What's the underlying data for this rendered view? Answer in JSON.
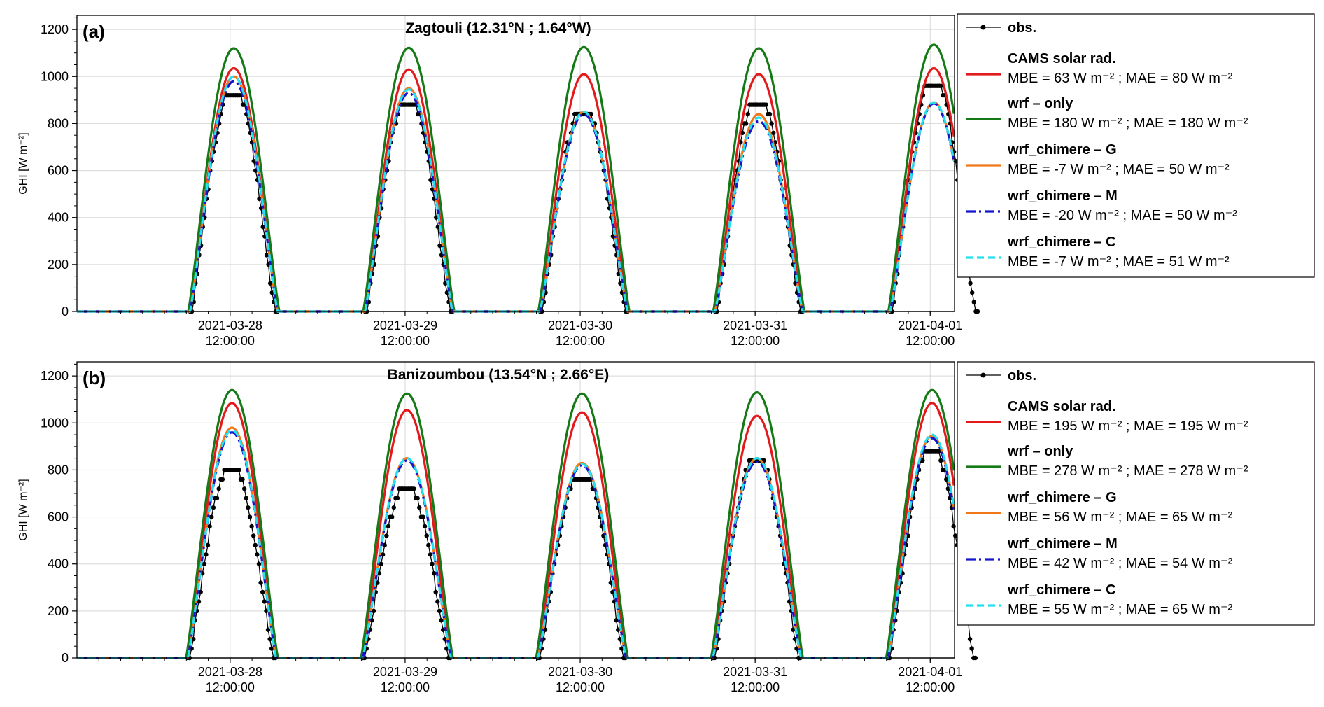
{
  "colors": {
    "obs": "#000000",
    "cams": "#e31a1c",
    "wrf_only": "#157a15",
    "wrf_chimere_G": "#f07818",
    "wrf_chimere_M": "#1515d0",
    "wrf_chimere_C": "#22e0f0"
  },
  "chart_data": [
    {
      "type": "line",
      "panel_label": "(a)",
      "title": "Zagtouli (12.31°N ; 1.64°W)",
      "ylabel": "GHI [W m⁻²]",
      "xlabel": "",
      "ylim": [
        0,
        1260
      ],
      "yticks": [
        0,
        200,
        400,
        600,
        800,
        1000,
        1200
      ],
      "xticks": [
        {
          "date": "2021-03-28",
          "time": "12:00:00"
        },
        {
          "date": "2021-03-29",
          "time": "12:00:00"
        },
        {
          "date": "2021-03-30",
          "time": "12:00:00"
        },
        {
          "date": "2021-03-31",
          "time": "12:00:00"
        },
        {
          "date": "2021-04-01",
          "time": "12:00:00"
        }
      ],
      "x_range_days": [
        "2021-03-27 15:00",
        "2021-04-01 15:20"
      ],
      "grid": true,
      "legend_position": "outside-right",
      "daylight_hours": [
        6.5,
        18.5
      ],
      "series": [
        {
          "key": "obs",
          "name": "obs.",
          "style": "line-dots",
          "daily_peak": [
            920,
            880,
            830,
            880,
            960
          ],
          "metrics": ""
        },
        {
          "key": "cams",
          "name": "CAMS solar rad.",
          "style": "solid",
          "daily_peak": [
            1035,
            1030,
            1010,
            1010,
            1035
          ],
          "metrics": "MBE = 63 W m⁻² ; MAE = 80 W m⁻²"
        },
        {
          "key": "wrf_only",
          "name": "wrf – only",
          "style": "solid",
          "daily_peak": [
            1120,
            1122,
            1125,
            1120,
            1135
          ],
          "metrics": "MBE = 180 W m⁻² ; MAE = 180 W m⁻²"
        },
        {
          "key": "wrf_chimere_G",
          "name": "wrf_chimere – G",
          "style": "solid",
          "daily_peak": [
            1000,
            950,
            850,
            840,
            890
          ],
          "metrics": "MBE = -7 W m⁻² ; MAE = 50 W m⁻²"
        },
        {
          "key": "wrf_chimere_M",
          "name": "wrf_chimere – M",
          "style": "dashdot",
          "daily_peak": [
            980,
            930,
            840,
            810,
            885
          ],
          "metrics": "MBE = -20 W m⁻² ; MAE = 50 W m⁻²"
        },
        {
          "key": "wrf_chimere_C",
          "name": "wrf_chimere – C",
          "style": "dashed",
          "daily_peak": [
            1000,
            945,
            850,
            825,
            890
          ],
          "metrics": "MBE = -7 W m⁻² ; MAE = 51 W m⁻²"
        }
      ]
    },
    {
      "type": "line",
      "panel_label": "(b)",
      "title": "Banizoumbou (13.54°N ; 2.66°E)",
      "ylabel": "GHI [W m⁻²]",
      "xlabel": "",
      "ylim": [
        0,
        1260
      ],
      "yticks": [
        0,
        200,
        400,
        600,
        800,
        1000,
        1200
      ],
      "xticks": [
        {
          "date": "2021-03-28",
          "time": "12:00:00"
        },
        {
          "date": "2021-03-29",
          "time": "12:00:00"
        },
        {
          "date": "2021-03-30",
          "time": "12:00:00"
        },
        {
          "date": "2021-03-31",
          "time": "12:00:00"
        },
        {
          "date": "2021-04-01",
          "time": "12:00:00"
        }
      ],
      "x_range_days": [
        "2021-03-27 15:00",
        "2021-04-01 15:20"
      ],
      "grid": true,
      "legend_position": "outside-right",
      "daylight_hours": [
        6.2,
        18.3
      ],
      "series": [
        {
          "key": "obs",
          "name": "obs.",
          "style": "line-dots",
          "daily_peak": [
            790,
            700,
            775,
            830,
            860
          ],
          "metrics": ""
        },
        {
          "key": "cams",
          "name": "CAMS solar rad.",
          "style": "solid",
          "daily_peak": [
            1085,
            1055,
            1045,
            1030,
            1085
          ],
          "metrics": "MBE = 195 W m⁻² ; MAE = 195 W m⁻²"
        },
        {
          "key": "wrf_only",
          "name": "wrf – only",
          "style": "solid",
          "daily_peak": [
            1140,
            1125,
            1125,
            1130,
            1140
          ],
          "metrics": "MBE = 278 W m⁻² ; MAE = 278 W m⁻²"
        },
        {
          "key": "wrf_chimere_G",
          "name": "wrf_chimere – G",
          "style": "solid",
          "daily_peak": [
            980,
            850,
            830,
            850,
            945
          ],
          "metrics": "MBE = 56 W m⁻² ; MAE = 65 W m⁻²"
        },
        {
          "key": "wrf_chimere_M",
          "name": "wrf_chimere – M",
          "style": "dashdot",
          "daily_peak": [
            960,
            840,
            820,
            835,
            935
          ],
          "metrics": "MBE = 42 W m⁻² ; MAE = 54 W m⁻²"
        },
        {
          "key": "wrf_chimere_C",
          "name": "wrf_chimere – C",
          "style": "dashed",
          "daily_peak": [
            970,
            850,
            825,
            850,
            950
          ],
          "metrics": "MBE = 55 W m⁻² ; MAE = 65 W m⁻²"
        }
      ]
    }
  ]
}
